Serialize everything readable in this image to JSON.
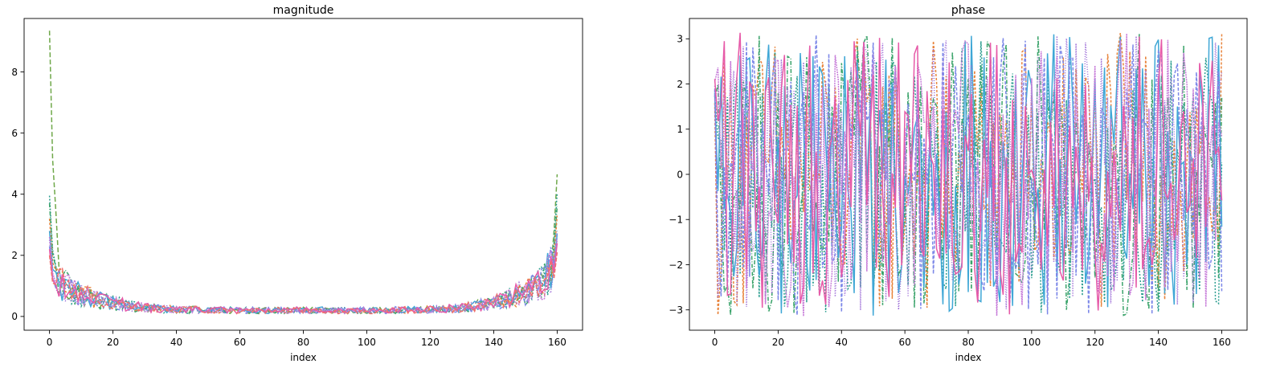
{
  "chart_data": [
    {
      "type": "line",
      "title": "magnitude",
      "xlabel": "index",
      "ylabel": "",
      "xlim": [
        -8,
        168
      ],
      "ylim": [
        -0.45,
        9.75
      ],
      "xticks": [
        0,
        20,
        40,
        60,
        80,
        100,
        120,
        140,
        160
      ],
      "yticks": [
        0,
        2,
        4,
        6,
        8
      ],
      "x_range": [
        0,
        160
      ],
      "profile": {
        "description_points_x": [
          0,
          1,
          3,
          6,
          10,
          15,
          20,
          25,
          30,
          40,
          60,
          80,
          100,
          120,
          130,
          135,
          140,
          145,
          150,
          155,
          158,
          160
        ],
        "typical_y": [
          2.4,
          1.6,
          1.2,
          0.9,
          0.7,
          0.55,
          0.45,
          0.35,
          0.28,
          0.22,
          0.2,
          0.2,
          0.2,
          0.22,
          0.28,
          0.35,
          0.45,
          0.6,
          0.8,
          1.1,
          1.5,
          2.0
        ]
      },
      "series": [
        {
          "color": "#6fa84a",
          "dash": "6,3",
          "peak_start": 9.35,
          "peak_end": 4.65
        },
        {
          "color": "#2a9d8f",
          "dash": "2,2",
          "peak_start": 3.95,
          "peak_end": 4.05
        },
        {
          "color": "#3aa36a",
          "dash": "5,2,1,2",
          "peak_start": 3.7,
          "peak_end": 3.6
        },
        {
          "color": "#e8843c",
          "dash": "3,2",
          "peak_start": 3.2,
          "peak_end": 3.3
        },
        {
          "color": "#3fa7d6",
          "dash": "",
          "peak_start": 2.8,
          "peak_end": 2.7
        },
        {
          "color": "#9b6bd6",
          "dash": "1,2",
          "peak_start": 2.5,
          "peak_end": 2.6
        },
        {
          "color": "#7d88e8",
          "dash": "4,2",
          "peak_start": 2.3,
          "peak_end": 2.8
        },
        {
          "color": "#c77dd9",
          "dash": "2,1",
          "peak_start": 2.6,
          "peak_end": 2.5
        },
        {
          "color": "#e65aa8",
          "dash": "",
          "peak_start": 2.2,
          "peak_end": 2.4
        },
        {
          "color": "#f06f6f",
          "dash": "5,2",
          "peak_start": 2.0,
          "peak_end": 2.1
        }
      ]
    },
    {
      "type": "line",
      "title": "phase",
      "xlabel": "index",
      "ylabel": "",
      "xlim": [
        -8,
        168
      ],
      "ylim": [
        -3.45,
        3.45
      ],
      "xticks": [
        0,
        20,
        40,
        60,
        80,
        100,
        120,
        140,
        160
      ],
      "yticks": [
        -3,
        -2,
        -1,
        0,
        1,
        2,
        3
      ],
      "x_range": [
        0,
        160
      ],
      "value_range": [
        -3.14159,
        3.14159
      ],
      "series": [
        {
          "color": "#e8843c",
          "dash": "3,2"
        },
        {
          "color": "#3aa36a",
          "dash": "5,2,1,2"
        },
        {
          "color": "#2a9d8f",
          "dash": "2,2"
        },
        {
          "color": "#3fa7d6",
          "dash": ""
        },
        {
          "color": "#7d88e8",
          "dash": "4,2"
        },
        {
          "color": "#9b6bd6",
          "dash": "1,2"
        },
        {
          "color": "#c77dd9",
          "dash": "2,1"
        },
        {
          "color": "#e65aa8",
          "dash": ""
        }
      ]
    }
  ]
}
